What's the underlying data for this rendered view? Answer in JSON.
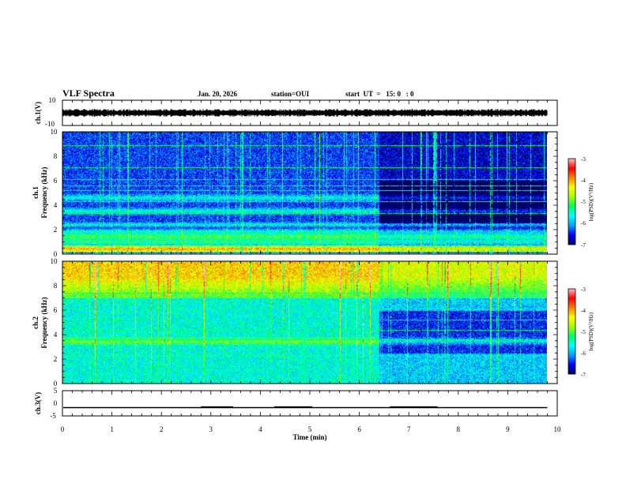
{
  "header": {
    "title": "VLF Spectra",
    "date": "Jan. 20, 2026",
    "station": "station=OUI",
    "start": "start  UT  =   15: 0   : 0"
  },
  "colors": {
    "spec_stops": [
      "#000060",
      "#0000ff",
      "#00a0ff",
      "#00ffff",
      "#00ff60",
      "#a0ff00",
      "#ffff00",
      "#ff8000",
      "#ff0000",
      "#ffc0c0"
    ],
    "ch3_line": "#000000"
  },
  "chart_data": [
    {
      "type": "line",
      "panel": "ch1-waveform",
      "ylabel": "ch.1(V)",
      "ylim": [
        -10,
        10
      ],
      "yticks": [
        "10",
        "-10"
      ],
      "x_range_min": [
        0,
        10
      ],
      "data_end_min": 9.8,
      "mean": 0,
      "band_halfwidth": 2.5,
      "note": "noise band around 0 V"
    },
    {
      "type": "heatmap",
      "panel": "ch1-spectrogram",
      "title": "ch.1",
      "ylabel": "Frequency (kHz)",
      "ylim": [
        0,
        10
      ],
      "yticks": [
        "0",
        "2",
        "4",
        "6",
        "8",
        "10"
      ],
      "x_range_min": [
        0,
        10
      ],
      "data_end_min": 9.8,
      "colorbar": {
        "label": "log(PSD)(V²/Hz)",
        "range": [
          -7,
          -3
        ],
        "ticks": [
          "-3",
          "-4",
          "-5",
          "-6",
          "-7"
        ]
      },
      "background_level": -6.4,
      "bands": [
        {
          "f": 0.4,
          "level": -4.0,
          "width": 0.2
        },
        {
          "f": 1.0,
          "level": -5.2,
          "width": 0.3
        },
        {
          "f": 1.4,
          "level": -5.0,
          "width": 0.3
        },
        {
          "f": 1.8,
          "level": -5.4,
          "width": 0.2
        },
        {
          "f": 2.4,
          "level": -5.6,
          "width": 0.2
        },
        {
          "f": 3.5,
          "level": -5.5,
          "width": 0.25
        },
        {
          "f": 4.6,
          "level": -5.6,
          "width": 0.3
        },
        {
          "f": 5.1,
          "level": -6.9,
          "width": 0.3
        }
      ],
      "lines_kHz": [
        3.3,
        4.3,
        5.2,
        5.6,
        6.1,
        7.1,
        8.9
      ],
      "quiet_after_min": 6.4
    },
    {
      "type": "heatmap",
      "panel": "ch2-spectrogram",
      "title": "ch.2",
      "ylabel": "Frequency (kHz)",
      "ylim": [
        0,
        10
      ],
      "yticks": [
        "0",
        "2",
        "4",
        "6",
        "8",
        "10"
      ],
      "x_range_min": [
        0,
        10
      ],
      "data_end_min": 9.8,
      "colorbar": {
        "label": "log(PSD)(V²/Hz)",
        "range": [
          -7,
          -3
        ],
        "ticks": [
          "-3",
          "-4",
          "-5",
          "-6",
          "-7"
        ]
      },
      "background_level": -5.6,
      "upper_band": {
        "from_kHz": 7,
        "to_kHz": 10,
        "level": -4.2
      },
      "bands": [
        {
          "f": 3.5,
          "level": -4.8,
          "width": 0.3
        },
        {
          "f": 2.3,
          "level": -5.4,
          "width": 0.3
        },
        {
          "f": 1.2,
          "level": -5.6,
          "width": 0.3
        }
      ],
      "lines_kHz": [
        3.6,
        4.4,
        5.2,
        6.1,
        6.8,
        7.4
      ],
      "quiet_after_min": 6.4
    },
    {
      "type": "line",
      "panel": "ch3-status",
      "ylabel": "ch.3(V)",
      "ylim": [
        -5,
        5
      ],
      "yticks": [
        "5",
        "0",
        "-5"
      ],
      "baseline_V": -1.7,
      "segments": [
        {
          "from_min": 2.8,
          "to_min": 3.45,
          "value_V": -1.2
        },
        {
          "from_min": 4.28,
          "to_min": 5.05,
          "value_V": -1.2
        },
        {
          "from_min": 6.62,
          "to_min": 7.58,
          "value_V": -1.2
        }
      ],
      "data_end_min": 9.8,
      "xlabel": "Time (min)",
      "xticks": [
        "0",
        "1",
        "2",
        "3",
        "4",
        "5",
        "6",
        "7",
        "8",
        "9",
        "10"
      ]
    }
  ]
}
